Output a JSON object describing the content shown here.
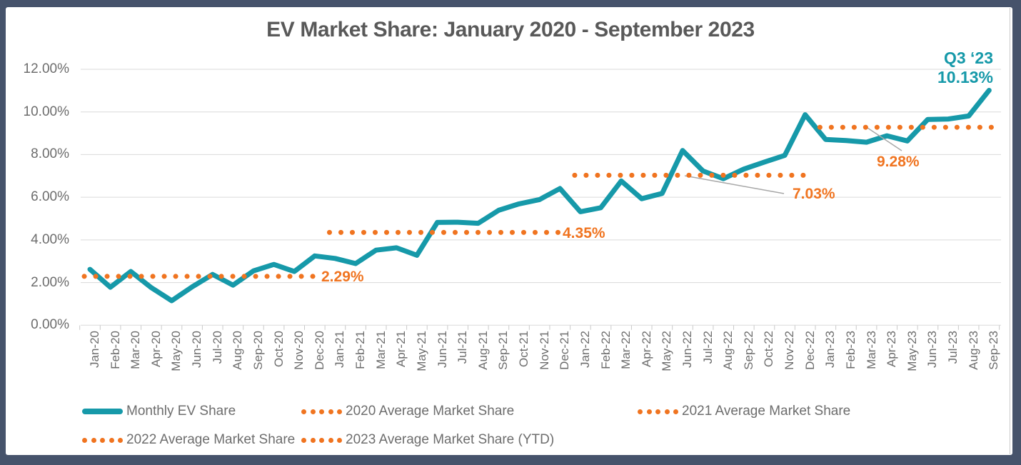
{
  "window": {
    "frame_color": "#46536b",
    "panel_background": "#ffffff"
  },
  "title": {
    "text": "EV Market Share: January 2020 - September 2023"
  },
  "colors": {
    "teal": "#1699a9",
    "orange": "#f07420",
    "gridline": "#d9d9d9",
    "tick": "#c9c9c9",
    "leader": "#a8a8a8",
    "title_text": "#595959",
    "axis_text": "#6d6d6d"
  },
  "chart_data": {
    "type": "line",
    "title": "EV Market Share: January 2020 - September 2023",
    "grid": true,
    "legend_position": "bottom",
    "ylim": [
      0,
      12
    ],
    "y_ticks": [
      {
        "value": 12,
        "label": "12.00%"
      },
      {
        "value": 10,
        "label": "10.00%"
      },
      {
        "value": 8,
        "label": "8.00%"
      },
      {
        "value": 6,
        "label": "6.00%"
      },
      {
        "value": 4,
        "label": "4.00%"
      },
      {
        "value": 2,
        "label": "2.00%"
      },
      {
        "value": 0,
        "label": "0.00%"
      }
    ],
    "x_labels": [
      "Jan-20",
      "Feb-20",
      "Mar-20",
      "Apr-20",
      "May-20",
      "Jun-20",
      "Jul-20",
      "Aug-20",
      "Sep-20",
      "Oct-20",
      "Nov-20",
      "Dec-20",
      "Jan-21",
      "Feb-21",
      "Mar-21",
      "Apr-21",
      "May-21",
      "Jun-21",
      "Jul-21",
      "Aug-21",
      "Sep-21",
      "Oct-21",
      "Nov-21",
      "Dec-21",
      "Jan-22",
      "Feb-22",
      "Mar-22",
      "Apr-22",
      "May-22",
      "Jun-22",
      "Jul-22",
      "Aug-22",
      "Sep-22",
      "Oct-22",
      "Nov-22",
      "Dec-22",
      "Jan-23",
      "Feb-23",
      "Mar-23",
      "Apr-23",
      "May-23",
      "Jun-23",
      "Jul-23",
      "Aug-23",
      "Sep-23"
    ],
    "series": [
      {
        "name": "Monthly EV Share",
        "style": "solid",
        "color": "#1699a9",
        "values": [
          2.62,
          1.78,
          2.52,
          1.76,
          1.15,
          1.8,
          2.38,
          1.88,
          2.55,
          2.85,
          2.52,
          3.25,
          3.13,
          2.89,
          3.52,
          3.63,
          3.28,
          4.82,
          4.83,
          4.78,
          5.39,
          5.69,
          5.89,
          6.41,
          5.32,
          5.51,
          6.76,
          5.93,
          6.18,
          8.19,
          7.23,
          6.87,
          7.32,
          7.65,
          7.96,
          9.87,
          8.71,
          8.66,
          8.58,
          8.88,
          8.64,
          9.65,
          9.67,
          9.81,
          11.01
        ]
      },
      {
        "name": "2020 Average Market Share",
        "style": "dotted",
        "color": "#f07420",
        "value": 2.29,
        "label": "2.29%",
        "from": "Jan-20",
        "to": "Dec-20",
        "from_index": 0,
        "to_index": 11
      },
      {
        "name": "2021 Average Market Share",
        "style": "dotted",
        "color": "#f07420",
        "value": 4.35,
        "label": "4.35%",
        "from": "Jan-21",
        "to": "Dec-21",
        "from_index": 12,
        "to_index": 23
      },
      {
        "name": "2022 Average Market Share",
        "style": "dotted",
        "color": "#f07420",
        "value": 7.03,
        "label": "7.03%",
        "from": "Jan-22",
        "to": "Dec-22",
        "from_index": 24,
        "to_index": 35
      },
      {
        "name": "2023 Average Market Share (YTD)",
        "style": "dotted",
        "color": "#f07420",
        "value": 9.28,
        "label": "9.28%",
        "from": "Jan-23",
        "to": "Sep-23",
        "from_index": 36,
        "to_index": 44
      }
    ],
    "annotations": {
      "q3_line1": "Q3 ‘23",
      "q3_line2": "10.13%"
    }
  },
  "legend": {
    "row1": [
      {
        "marker": "line",
        "label": "Monthly EV Share"
      },
      {
        "marker": "dots",
        "label": "2020 Average Market Share"
      },
      {
        "marker": "dots",
        "label": "2021 Average Market Share"
      }
    ],
    "row2": [
      {
        "marker": "dots",
        "label": "2022 Average Market Share"
      },
      {
        "marker": "dots",
        "label": "2023 Average Market Share (YTD)"
      }
    ]
  }
}
